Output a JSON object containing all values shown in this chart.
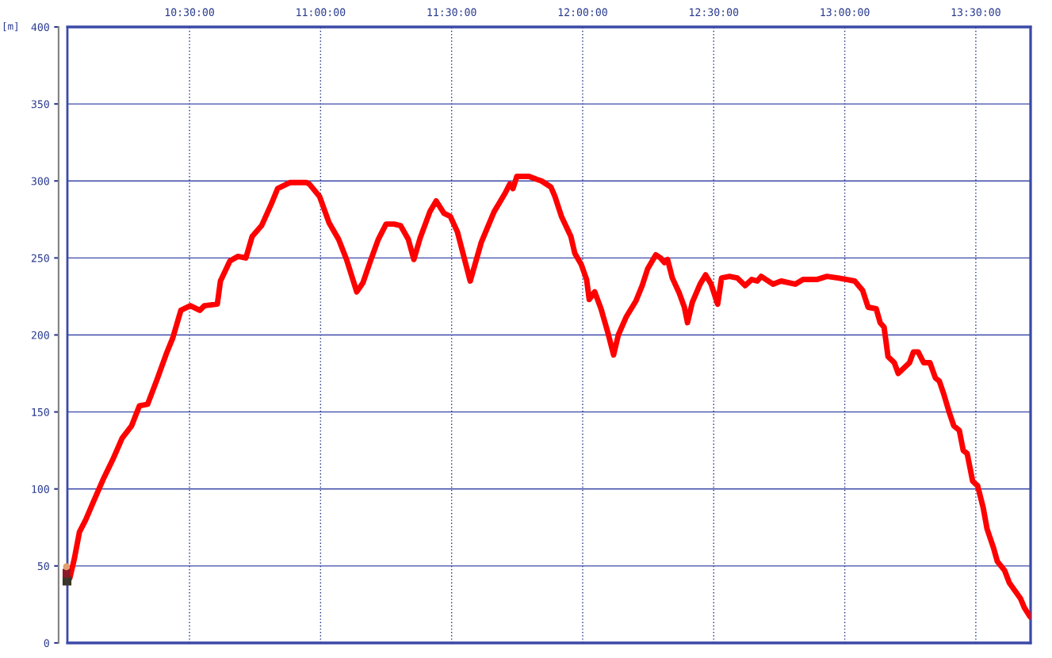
{
  "chart_data": {
    "type": "line",
    "ylabel": "[m]",
    "x": [
      10.043,
      10.061,
      10.08,
      10.104,
      10.134,
      10.17,
      10.207,
      10.243,
      10.279,
      10.309,
      10.34,
      10.376,
      10.412,
      10.436,
      10.467,
      10.503,
      10.539,
      10.557,
      10.606,
      10.618,
      10.654,
      10.684,
      10.715,
      10.739,
      10.775,
      10.812,
      10.836,
      10.884,
      10.945,
      10.957,
      10.996,
      11.032,
      11.069,
      11.099,
      11.138,
      11.162,
      11.19,
      11.22,
      11.25,
      11.28,
      11.305,
      11.335,
      11.356,
      11.38,
      11.417,
      11.441,
      11.471,
      11.495,
      11.522,
      11.571,
      11.613,
      11.662,
      11.704,
      11.722,
      11.734,
      11.749,
      11.795,
      11.825,
      11.843,
      11.879,
      11.894,
      11.919,
      11.955,
      11.97,
      11.994,
      12.015,
      12.025,
      12.046,
      12.07,
      12.097,
      12.118,
      12.136,
      12.167,
      12.203,
      12.227,
      12.248,
      12.279,
      12.297,
      12.312,
      12.324,
      12.342,
      12.369,
      12.388,
      12.4,
      12.418,
      12.448,
      12.469,
      12.49,
      12.515,
      12.53,
      12.56,
      12.59,
      12.62,
      12.645,
      12.666,
      12.681,
      12.726,
      12.757,
      12.811,
      12.841,
      12.893,
      12.932,
      12.974,
      13.008,
      13.038,
      13.068,
      13.089,
      13.12,
      13.135,
      13.15,
      13.165,
      13.189,
      13.204,
      13.247,
      13.262,
      13.28,
      13.301,
      13.325,
      13.346,
      13.361,
      13.377,
      13.398,
      13.416,
      13.437,
      13.452,
      13.467,
      13.488,
      13.507,
      13.528,
      13.543,
      13.567,
      13.582,
      13.61,
      13.628,
      13.649,
      13.67,
      13.685,
      13.707
    ],
    "series": [
      {
        "color": "#ff0000",
        "values": [
          42,
          55,
          72,
          80,
          92,
          106,
          119,
          133,
          141,
          154,
          155,
          171,
          188,
          198,
          216,
          219,
          216,
          219,
          220,
          235,
          248,
          251,
          250,
          264,
          271,
          285,
          295,
          299,
          299,
          298,
          290,
          273,
          262,
          249,
          228,
          234,
          248,
          262,
          272,
          272,
          271,
          262,
          249,
          263,
          280,
          287,
          279,
          277,
          267,
          235,
          260,
          280,
          292,
          298,
          295,
          303,
          303,
          301,
          300,
          296,
          290,
          277,
          264,
          253,
          246,
          236,
          223,
          228,
          217,
          201,
          187,
          200,
          212,
          222,
          232,
          243,
          252,
          250,
          247,
          249,
          237,
          227,
          218,
          208,
          221,
          233,
          239,
          233,
          220,
          237,
          238,
          237,
          232,
          236,
          235,
          238,
          233,
          235,
          233,
          236,
          236,
          238,
          237,
          236,
          235,
          229,
          218,
          217,
          208,
          205,
          186,
          182,
          175,
          182,
          189,
          189,
          182,
          182,
          172,
          170,
          162,
          150,
          141,
          138,
          125,
          123,
          105,
          102,
          88,
          74,
          62,
          53,
          47,
          39,
          34,
          29,
          23,
          17
        ]
      }
    ],
    "xlim": [
      10.034,
      13.709
    ],
    "xticks": [
      {
        "value": 10.5,
        "label": "10:30:00"
      },
      {
        "value": 11.0,
        "label": "11:00:00"
      },
      {
        "value": 11.5,
        "label": "11:30:00"
      },
      {
        "value": 12.0,
        "label": "12:00:00"
      },
      {
        "value": 12.5,
        "label": "12:30:00"
      },
      {
        "value": 13.0,
        "label": "13:00:00"
      },
      {
        "value": 13.5,
        "label": "13:30:00"
      }
    ],
    "ylim": [
      0,
      400
    ],
    "yticks": [
      0,
      50,
      100,
      150,
      200,
      250,
      300,
      350,
      400
    ],
    "grid": true,
    "line_style": "solid"
  }
}
